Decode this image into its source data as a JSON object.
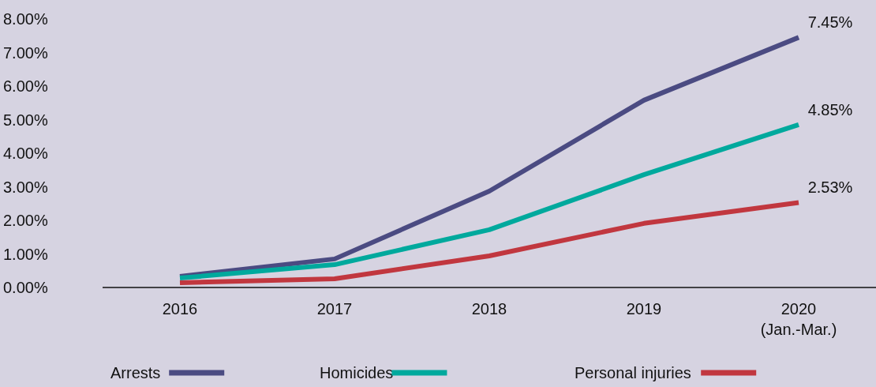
{
  "chart_data": {
    "type": "line",
    "categories": [
      "2016",
      "2017",
      "2018",
      "2019",
      "2020\n(Jan.-Mar.)"
    ],
    "series": [
      {
        "name": "Arrests",
        "color": "#4b4b82",
        "values": [
          0.33,
          0.85,
          2.87,
          5.58,
          7.45
        ],
        "value_labels": [
          null,
          null,
          null,
          null,
          "7.45%"
        ]
      },
      {
        "name": "Homicides",
        "color": "#00a99d",
        "values": [
          0.28,
          0.68,
          1.72,
          3.36,
          4.85
        ],
        "value_labels": [
          null,
          null,
          null,
          null,
          "4.85%"
        ]
      },
      {
        "name": "Personal injuries",
        "color": "#c1373f",
        "values": [
          0.14,
          0.26,
          0.94,
          1.91,
          2.53
        ],
        "value_labels": [
          null,
          null,
          null,
          null,
          "2.53%"
        ]
      }
    ],
    "ylim": [
      0,
      8
    ],
    "yticks": [
      {
        "value": 0,
        "label": "0.00%"
      },
      {
        "value": 1,
        "label": "1.00%"
      },
      {
        "value": 2,
        "label": "2.00%"
      },
      {
        "value": 3,
        "label": "3.00%"
      },
      {
        "value": 4,
        "label": "4.00%"
      },
      {
        "value": 5,
        "label": "5.00%"
      },
      {
        "value": 6,
        "label": "6.00%"
      },
      {
        "value": 7,
        "label": "7.00%"
      },
      {
        "value": 8,
        "label": "8.00%"
      }
    ],
    "grid": false,
    "legend": "bottom",
    "marker": "none",
    "line_style": "solid"
  }
}
